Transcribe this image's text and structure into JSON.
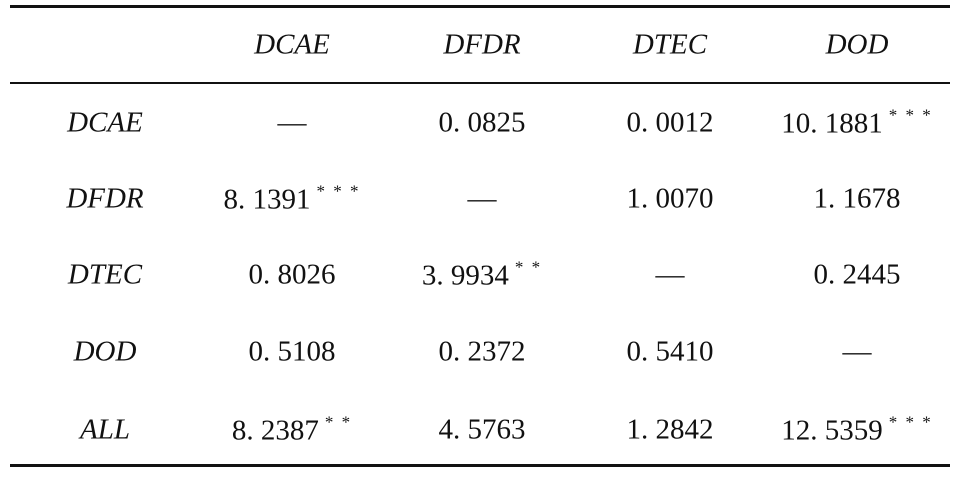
{
  "table": {
    "columns": [
      "DCAE",
      "DFDR",
      "DTEC",
      "DOD"
    ],
    "rows": [
      {
        "label": "DCAE",
        "cells": [
          {
            "value": "—"
          },
          {
            "value": "0. 0825"
          },
          {
            "value": "0. 0012"
          },
          {
            "value": "10. 1881",
            "sig": "* * *"
          }
        ]
      },
      {
        "label": "DFDR",
        "cells": [
          {
            "value": "8. 1391",
            "sig": "* * *"
          },
          {
            "value": "—"
          },
          {
            "value": "1. 0070"
          },
          {
            "value": "1. 1678"
          }
        ]
      },
      {
        "label": "DTEC",
        "cells": [
          {
            "value": "0. 8026"
          },
          {
            "value": "3. 9934",
            "sig": "* *"
          },
          {
            "value": "—"
          },
          {
            "value": "0. 2445"
          }
        ]
      },
      {
        "label": "DOD",
        "cells": [
          {
            "value": "0. 5108"
          },
          {
            "value": "0. 2372"
          },
          {
            "value": "0. 5410"
          },
          {
            "value": "—"
          }
        ]
      },
      {
        "label": "ALL",
        "cells": [
          {
            "value": "8. 2387",
            "sig": "* *"
          },
          {
            "value": "4. 5763"
          },
          {
            "value": "1. 2842"
          },
          {
            "value": "12. 5359",
            "sig": "* * *"
          }
        ]
      }
    ]
  }
}
